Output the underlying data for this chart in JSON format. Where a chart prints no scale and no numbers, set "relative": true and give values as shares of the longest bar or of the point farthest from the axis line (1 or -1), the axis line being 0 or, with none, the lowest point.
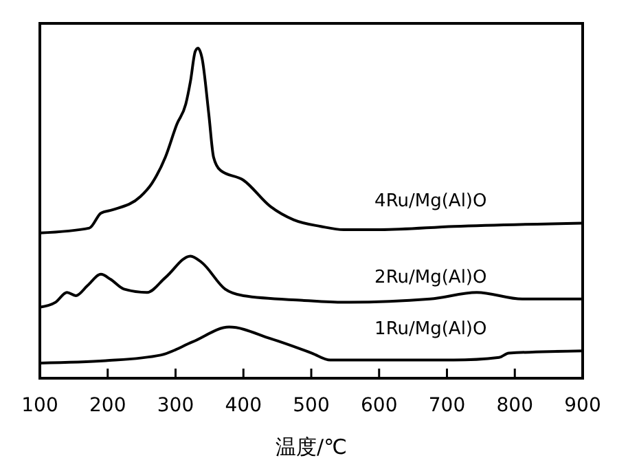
{
  "chart_data": {
    "type": "line",
    "relative": true,
    "xlabel": "温度/℃",
    "xlim": [
      100,
      900
    ],
    "xticks": [
      100,
      200,
      300,
      400,
      500,
      600,
      700,
      800,
      900
    ],
    "tick_labels": "x",
    "grid": false,
    "legend": false,
    "marker": "none",
    "line_style": "solid",
    "series": [
      {
        "name": "4Ru/Mg(Al)O",
        "color": "#000000",
        "x": [
          100,
          173,
          190,
          207,
          248,
          265,
          285,
          302,
          315,
          322,
          329,
          333,
          339,
          349,
          356,
          366,
          400,
          440,
          474,
          514,
          548,
          602,
          710,
          900
        ],
        "values": [
          0.44,
          0.455,
          0.5,
          0.51,
          0.55,
          0.59,
          0.67,
          0.77,
          0.83,
          0.9,
          0.99,
          1.0,
          0.97,
          0.8,
          0.67,
          0.63,
          0.6,
          0.52,
          0.48,
          0.46,
          0.45,
          0.45,
          0.46,
          0.47
        ]
      },
      {
        "name": "2Ru/Mg(Al)O",
        "color": "#000000",
        "x": [
          100,
          123,
          140,
          153,
          170,
          190,
          204,
          224,
          258,
          285,
          322,
          339,
          373,
          400,
          487,
          548,
          675,
          744,
          811,
          900
        ],
        "values": [
          0.215,
          0.23,
          0.26,
          0.25,
          0.28,
          0.315,
          0.3,
          0.27,
          0.26,
          0.305,
          0.37,
          0.35,
          0.27,
          0.25,
          0.236,
          0.23,
          0.24,
          0.26,
          0.24,
          0.24
        ]
      },
      {
        "name": "1Ru/Mg(Al)O",
        "color": "#000000",
        "x": [
          100,
          197,
          278,
          325,
          379,
          440,
          501,
          528,
          609,
          710,
          777,
          791,
          900
        ],
        "values": [
          0.046,
          0.053,
          0.07,
          0.11,
          0.155,
          0.12,
          0.076,
          0.055,
          0.055,
          0.055,
          0.063,
          0.076,
          0.083
        ]
      }
    ]
  }
}
